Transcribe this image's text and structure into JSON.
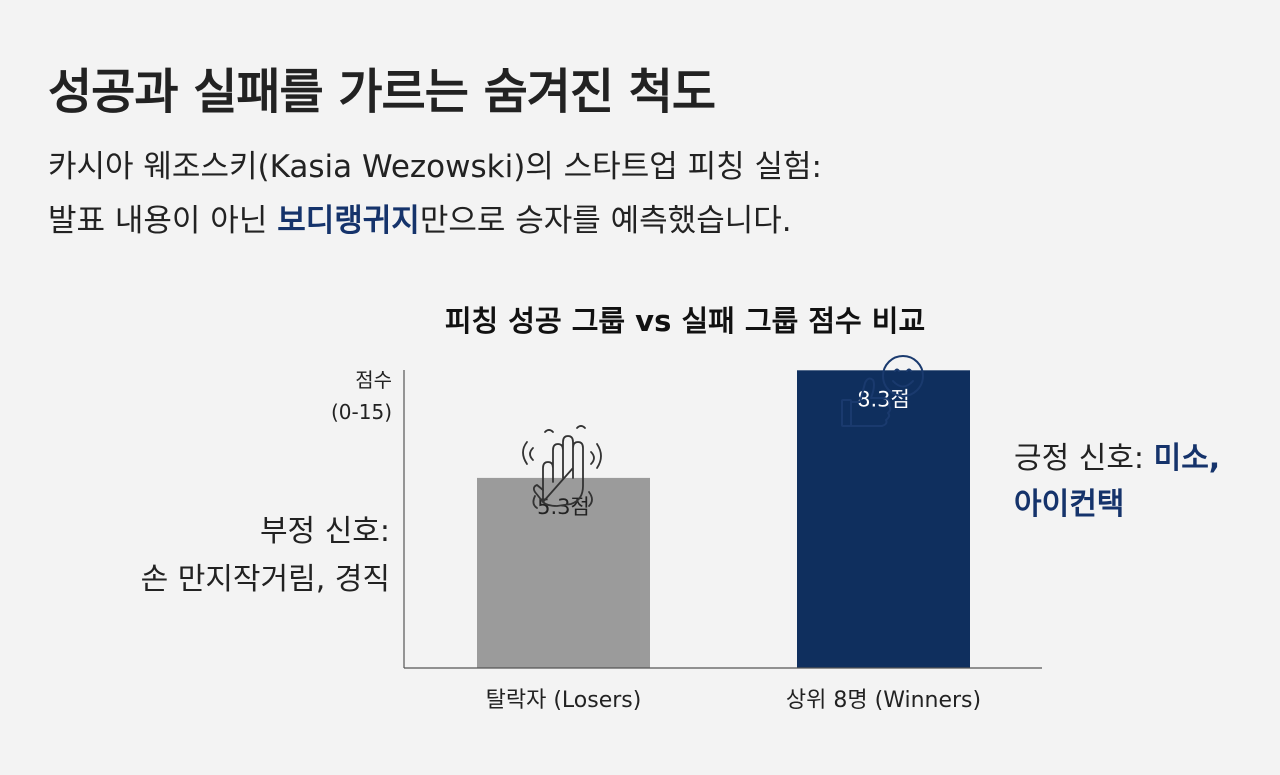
{
  "title": "성공과 실패를 가르는 숨겨진 척도",
  "subtitle": {
    "line1": "카시아 웨조스키(Kasia Wezowski)의 스타트업 피칭 실험:",
    "line2_before": "발표 내용이 아닌 ",
    "line2_highlight": "보디랭귀지",
    "line2_after": "만으로 승자를 예측했습니다."
  },
  "colors": {
    "loser_bar": "#9b9b9b",
    "winner_bar": "#0f2f5e",
    "accent_text": "#15336b",
    "icon": "#1a3a6e"
  },
  "icons": {
    "loser": "fidgeting-hand-icon",
    "winner": "thumbs-up-smile-icon"
  },
  "annotations": {
    "negative": {
      "line1": "부정 신호:",
      "line2": "손 만지작거림, 경직"
    },
    "positive": {
      "prefix": "긍정 신호: ",
      "highlight_line1": "미소,",
      "highlight_line2": "아이컨택"
    }
  },
  "chart_data": {
    "type": "bar",
    "title": "피칭 성공 그룹 vs 실패 그룹 점수 비교",
    "ylabel_line1": "점수",
    "ylabel_line2": "(0-15)",
    "ylim": [
      0,
      15
    ],
    "categories": [
      "탈락자 (Losers)",
      "상위 8명 (Winners)"
    ],
    "values": [
      5.3,
      8.3
    ],
    "value_labels": [
      "5.3점",
      "8.3점"
    ],
    "grid": false
  }
}
